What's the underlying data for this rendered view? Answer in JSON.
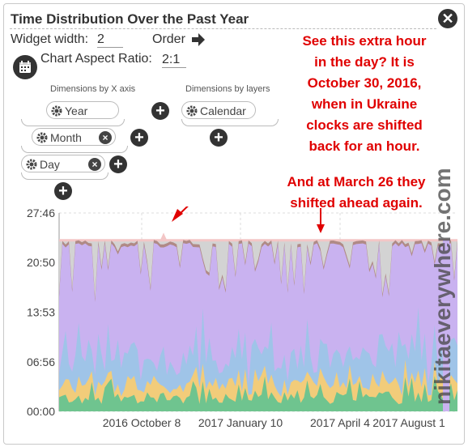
{
  "widget": {
    "title": "Time Distribution Over the Past Year",
    "close_icon": "close-icon"
  },
  "settings": {
    "width_label": "Widget width:",
    "width_value": "2",
    "order_label": "Order",
    "aspect_label": "Chart Aspect Ratio:",
    "aspect_value": "2:1"
  },
  "dimensions": {
    "x_axis_title": "Dimensions by X axis",
    "x_axis_items": [
      "Year",
      "Month",
      "Day"
    ],
    "layers_title": "Dimensions by layers",
    "layer_items": [
      "Calendar"
    ]
  },
  "annotations": {
    "extra_hour": [
      "See this extra hour",
      "in the day? It is",
      "October 30, 2016,",
      "when in Ukraine",
      "clocks are shifted",
      "back for an hour."
    ],
    "march": [
      "And at March 26 they",
      "shifted ahead again."
    ]
  },
  "watermark": "nikitaeverywhere.com",
  "colors": {
    "annotation": "#e00000",
    "overflow_band": "#f3c6c6",
    "top_layer": "#b08a86",
    "purple": "#c9b2f0",
    "green": "#6fc48f",
    "yellow": "#f2cc7a",
    "blue": "#9fc4e8"
  },
  "chart_data": {
    "type": "area",
    "title": "",
    "ytick_labels": [
      "27:46",
      "20:50",
      "13:53",
      "06:56",
      "00:00"
    ],
    "xtick_labels": [
      "2016 October 8",
      "2017 January 10",
      "2017 April 4",
      "2017 August 1"
    ],
    "ylim": [
      "00:00",
      "27:46"
    ],
    "day_total": "24:00",
    "spike_day": "2016-10-30",
    "spike_total": "25:00",
    "dip_day": "2017-03-26",
    "dip_total": "23:00",
    "grid": true,
    "stacked": true
  }
}
